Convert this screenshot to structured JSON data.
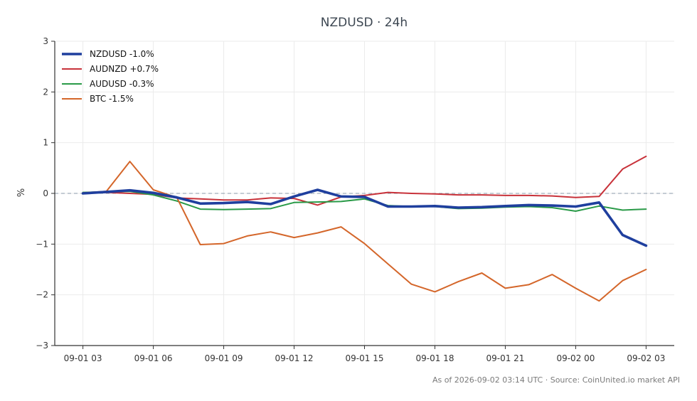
{
  "chart_data": {
    "type": "line",
    "title": "NZDUSD · 24h",
    "ylabel": "%",
    "xlabel": "",
    "ylim": [
      -3,
      3
    ],
    "y_ticks": [
      3,
      2,
      1,
      0,
      -1,
      -2,
      -3
    ],
    "y_tick_labels": [
      "3",
      "2",
      "1",
      "0",
      "−1",
      "−2",
      "−3"
    ],
    "x_ticks": [
      "09-01 03",
      "09-01 06",
      "09-01 09",
      "09-01 12",
      "09-01 15",
      "09-01 18",
      "09-01 21",
      "09-02 00",
      "09-02 03"
    ],
    "x_tick_hours": [
      0,
      3,
      6,
      9,
      12,
      15,
      18,
      21,
      24
    ],
    "xlim_hours": [
      -1.2,
      25.2
    ],
    "grid": true,
    "zero_line": true,
    "legend_position": "top-left",
    "x_hours": [
      0,
      1,
      2,
      3,
      4,
      5,
      6,
      7,
      8,
      9,
      10,
      11,
      12,
      13,
      14,
      15,
      16,
      17,
      18,
      19,
      20,
      21,
      22,
      23,
      24
    ],
    "series": [
      {
        "name": "NZDUSD -1.0%",
        "color": "#1f3f9e",
        "emphasis": true,
        "values": [
          0.0,
          0.03,
          0.06,
          0.01,
          -0.08,
          -0.2,
          -0.19,
          -0.17,
          -0.21,
          -0.06,
          0.07,
          -0.06,
          -0.07,
          -0.26,
          -0.26,
          -0.25,
          -0.28,
          -0.27,
          -0.25,
          -0.23,
          -0.24,
          -0.26,
          -0.18,
          -0.82,
          -1.03
        ]
      },
      {
        "name": "AUDNZD +0.7%",
        "color": "#c8323a",
        "emphasis": false,
        "values": [
          0.01,
          0.02,
          0.0,
          -0.02,
          -0.09,
          -0.11,
          -0.13,
          -0.13,
          -0.09,
          -0.1,
          -0.23,
          -0.07,
          -0.04,
          0.02,
          0.0,
          -0.01,
          -0.03,
          -0.03,
          -0.04,
          -0.04,
          -0.05,
          -0.08,
          -0.06,
          0.48,
          0.73
        ]
      },
      {
        "name": "AUDUSD -0.3%",
        "color": "#2a9a48",
        "emphasis": false,
        "values": [
          0.02,
          0.03,
          0.04,
          -0.03,
          -0.15,
          -0.31,
          -0.32,
          -0.31,
          -0.3,
          -0.18,
          -0.17,
          -0.16,
          -0.11,
          -0.24,
          -0.26,
          -0.26,
          -0.3,
          -0.29,
          -0.27,
          -0.26,
          -0.28,
          -0.35,
          -0.25,
          -0.33,
          -0.31
        ]
      },
      {
        "name": "BTC -1.5%",
        "color": "#d4662a",
        "emphasis": false,
        "values": [
          0.01,
          0.04,
          0.63,
          0.07,
          -0.08,
          -1.01,
          -0.99,
          -0.84,
          -0.76,
          -0.87,
          -0.78,
          -0.66,
          -0.99,
          -1.39,
          -1.79,
          -1.94,
          -1.74,
          -1.57,
          -1.87,
          -1.8,
          -1.6,
          -1.87,
          -2.12,
          -1.72,
          -1.5
        ]
      }
    ],
    "footer": "As of 2026-09-02 03:14 UTC · Source: CoinUnited.io market API"
  }
}
